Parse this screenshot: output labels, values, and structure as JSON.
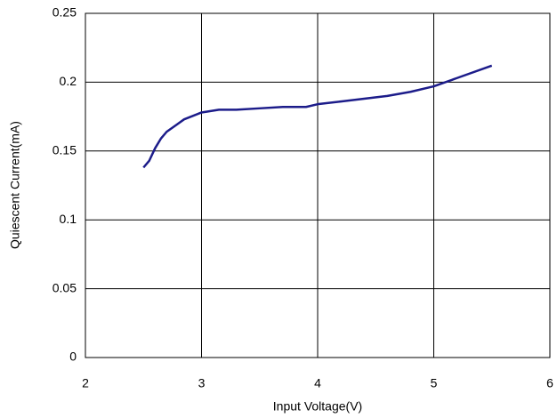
{
  "chart_data": {
    "type": "line",
    "xlabel": "Input Voltage(V)",
    "ylabel": "Quiescent Current(mA)",
    "x": [
      2.5,
      2.55,
      2.6,
      2.65,
      2.7,
      2.8,
      2.85,
      3.0,
      3.15,
      3.3,
      3.5,
      3.7,
      3.9,
      4.0,
      4.2,
      4.4,
      4.6,
      4.8,
      5.0,
      5.2,
      5.5
    ],
    "series": [
      {
        "name": "Quiescent Current",
        "color": "#1c1c8a",
        "values": [
          0.138,
          0.143,
          0.152,
          0.159,
          0.164,
          0.17,
          0.173,
          0.178,
          0.18,
          0.18,
          0.181,
          0.182,
          0.182,
          0.184,
          0.186,
          0.188,
          0.19,
          0.193,
          0.197,
          0.203,
          0.212
        ]
      }
    ],
    "xlim": [
      2,
      6
    ],
    "xticks": [
      2,
      3,
      4,
      5,
      6
    ],
    "ylim": [
      0,
      0.25
    ],
    "yticks": [
      0,
      0.05,
      0.1,
      0.15,
      0.2,
      0.25
    ],
    "grid": true
  }
}
